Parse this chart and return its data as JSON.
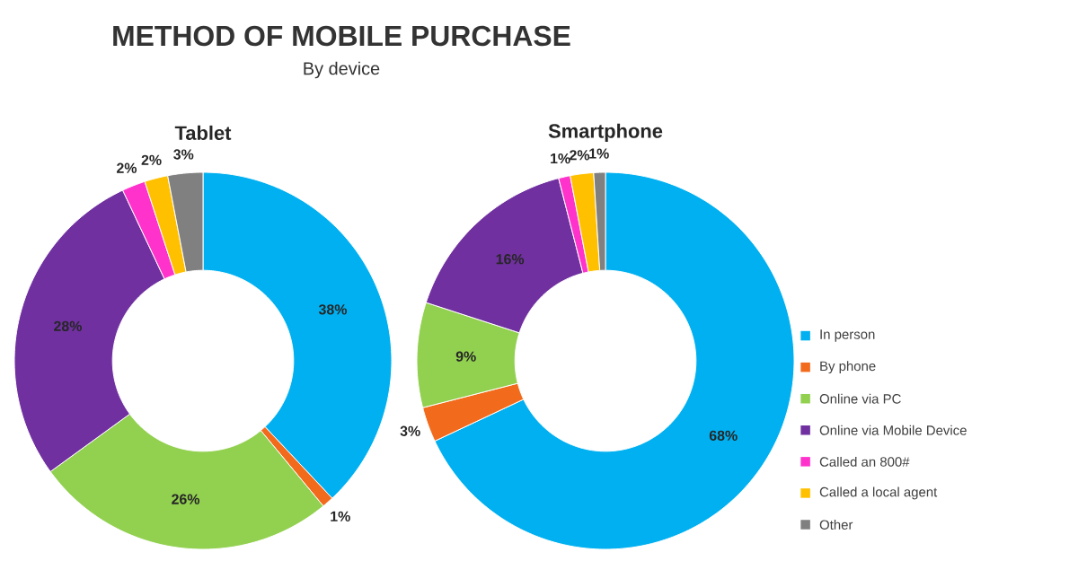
{
  "chart_data": [
    {
      "type": "other",
      "title": "METHOD OF MOBILE PURCHASE",
      "subtitle": "By device"
    },
    {
      "type": "donut",
      "title": "Tablet",
      "categories": [
        null,
        null,
        null,
        null,
        null,
        null,
        null
      ],
      "values": [
        38,
        1,
        26,
        28,
        2,
        2,
        3
      ],
      "colors": [
        "#00b0f0",
        "#f26b1d",
        "#92d050",
        "#7030a0",
        "#ff33cc",
        "#ffc000",
        "#808080"
      ],
      "value_labels": [
        "38%",
        "1%",
        "26%",
        "28%",
        "2%",
        "2%",
        "3%"
      ]
    },
    {
      "type": "donut",
      "title": "Smartphone",
      "categories": [
        "In person",
        "By phone",
        "Online via PC",
        "Online via Mobile Device",
        "Called an 800#",
        "Called a local agent",
        "Other"
      ],
      "values": [
        68,
        3,
        9,
        16,
        1,
        2,
        1
      ],
      "colors": [
        "#00b0f0",
        "#f26b1d",
        "#92d050",
        "#7030a0",
        "#ff33cc",
        "#ffc000",
        "#808080"
      ],
      "value_labels": [
        "68%",
        "3%",
        "9%",
        "16%",
        "1%",
        "2%",
        "1%"
      ],
      "legend": "right"
    }
  ]
}
